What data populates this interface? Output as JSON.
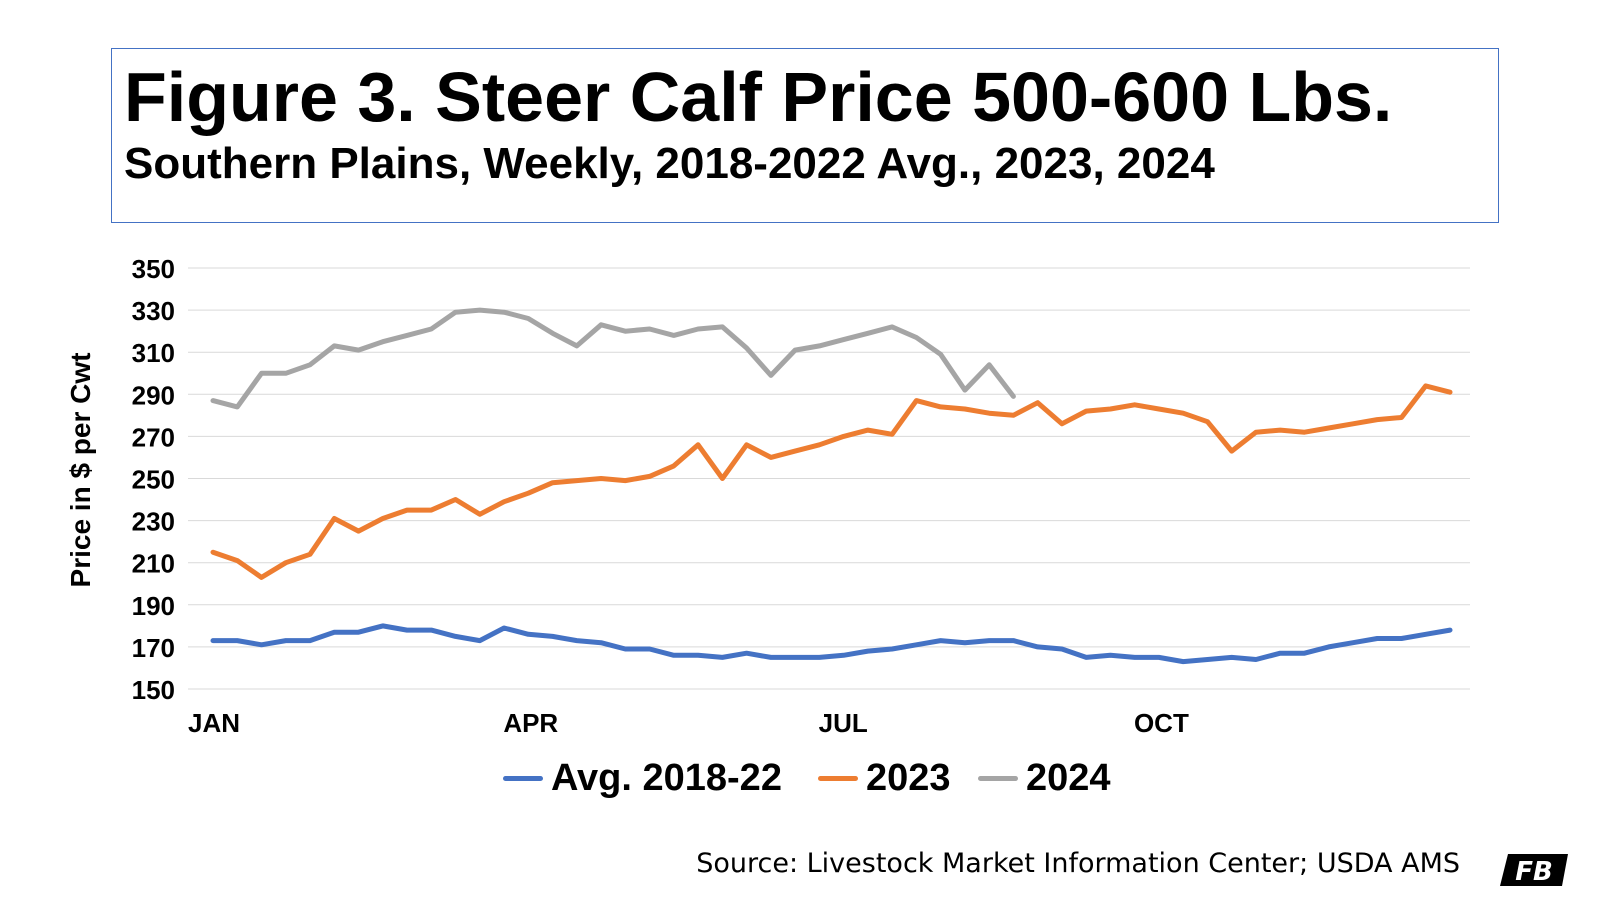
{
  "header": {
    "title": "Figure 3. Steer Calf Price 500-600 Lbs.",
    "subtitle": "Southern Plains, Weekly, 2018-2022 Avg., 2023, 2024"
  },
  "footer": {
    "source": "Source: Livestock Market Information Center; USDA AMS",
    "logo_text": "FB"
  },
  "colors": {
    "avg": "#4472C4",
    "y2023": "#ED7D31",
    "y2024": "#A5A5A5",
    "border": "#4472C4",
    "grid": "#D9D9D9"
  },
  "chart_data": {
    "type": "line",
    "title": "Figure 3. Steer Calf Price 500-600 Lbs.",
    "subtitle": "Southern Plains, Weekly, 2018-2022 Avg., 2023, 2024",
    "xlabel": "",
    "ylabel": "Price in $ per Cwt",
    "ylim": [
      150,
      350
    ],
    "yticks": [
      150,
      170,
      190,
      210,
      230,
      250,
      270,
      290,
      310,
      330,
      350
    ],
    "xlim": [
      1,
      53
    ],
    "x_tick_labels": [
      {
        "week": 1,
        "label": "JAN"
      },
      {
        "week": 14,
        "label": "APR"
      },
      {
        "week": 27,
        "label": "JUL"
      },
      {
        "week": 40,
        "label": "OCT"
      }
    ],
    "grid": true,
    "legend_position": "bottom",
    "series": [
      {
        "name": "Avg. 2018-22",
        "color": "#4472C4",
        "values": [
          173,
          173,
          171,
          173,
          173,
          177,
          177,
          180,
          178,
          178,
          175,
          173,
          179,
          176,
          175,
          173,
          172,
          169,
          169,
          166,
          166,
          165,
          167,
          165,
          165,
          165,
          166,
          168,
          169,
          171,
          173,
          172,
          173,
          173,
          170,
          169,
          165,
          166,
          165,
          165,
          163,
          164,
          165,
          164,
          167,
          167,
          170,
          172,
          174,
          174,
          176,
          178
        ]
      },
      {
        "name": "2023",
        "color": "#ED7D31",
        "values": [
          215,
          211,
          203,
          210,
          214,
          231,
          225,
          231,
          235,
          235,
          240,
          233,
          239,
          243,
          248,
          249,
          250,
          249,
          251,
          256,
          266,
          250,
          266,
          260,
          263,
          266,
          270,
          273,
          271,
          287,
          284,
          283,
          281,
          280,
          286,
          276,
          282,
          283,
          285,
          283,
          281,
          277,
          263,
          272,
          273,
          272,
          274,
          276,
          278,
          279,
          294,
          291
        ]
      },
      {
        "name": "2024",
        "color": "#A5A5A5",
        "values": [
          287,
          284,
          300,
          300,
          304,
          313,
          311,
          315,
          318,
          321,
          329,
          330,
          329,
          326,
          319,
          313,
          323,
          320,
          321,
          318,
          321,
          322,
          312,
          299,
          311,
          313,
          316,
          319,
          322,
          317,
          309,
          292,
          304,
          289
        ]
      }
    ]
  }
}
